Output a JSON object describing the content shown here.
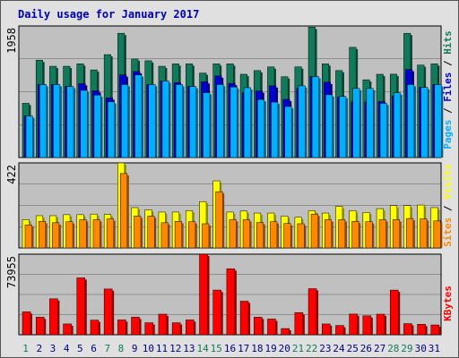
{
  "colors": {
    "background": "#e0e0e0",
    "plot": "#c0c0c0",
    "title": "#0000b0",
    "hits": "#107a5a",
    "files": "#0000d0",
    "pages": "#00b0ff",
    "visits": "#ffff00",
    "sites": "#ff8800",
    "kbytes": "#ff0000",
    "weekend_tick": "#107a5a",
    "tick": "#000080"
  },
  "chart_data": [
    {
      "type": "bar",
      "title": "Daily usage for January 2017",
      "categories": [
        "1",
        "2",
        "3",
        "4",
        "5",
        "6",
        "7",
        "8",
        "9",
        "10",
        "11",
        "12",
        "13",
        "14",
        "15",
        "16",
        "17",
        "18",
        "19",
        "20",
        "21",
        "22",
        "23",
        "24",
        "25",
        "26",
        "27",
        "28",
        "29",
        "30",
        "31"
      ],
      "weekend_days": [
        "1",
        "7",
        "8",
        "14",
        "15",
        "21",
        "22",
        "28",
        "29"
      ],
      "y_label": "1958",
      "ylim": [
        0,
        1958
      ],
      "right_labels": [
        "Pages",
        "Files",
        "Hits"
      ],
      "series": [
        {
          "name": "Hits",
          "values": [
            807,
            1449,
            1358,
            1358,
            1395,
            1304,
            1531,
            1849,
            1467,
            1440,
            1358,
            1394,
            1394,
            1257,
            1394,
            1394,
            1239,
            1294,
            1348,
            1202,
            1349,
            1940,
            1394,
            1294,
            1640,
            1157,
            1239,
            1240,
            1849,
            1376,
            1394
          ]
        },
        {
          "name": "Files",
          "values": [
            617,
            1086,
            1086,
            1057,
            1100,
            995,
            888,
            1230,
            1280,
            1086,
            1140,
            1113,
            1058,
            1126,
            1213,
            1103,
            964,
            991,
            1067,
            865,
            1028,
            1205,
            1120,
            900,
            830,
            830,
            833,
            914,
            1311,
            1043,
            1086
          ]
        },
        {
          "name": "Pages",
          "values": [
            617,
            1086,
            1086,
            1057,
            1000,
            930,
            831,
            1086,
            1230,
            1086,
            1140,
            1086,
            1058,
            966,
            1086,
            1050,
            1040,
            864,
            825,
            759,
            1067,
            1205,
            934,
            910,
            1028,
            1028,
            807,
            963,
            1086,
            1043,
            1086
          ]
        }
      ]
    },
    {
      "type": "bar",
      "categories": [
        "1",
        "2",
        "3",
        "4",
        "5",
        "6",
        "7",
        "8",
        "9",
        "10",
        "11",
        "12",
        "13",
        "14",
        "15",
        "16",
        "17",
        "18",
        "19",
        "20",
        "21",
        "22",
        "23",
        "24",
        "25",
        "26",
        "27",
        "28",
        "29",
        "30",
        "31"
      ],
      "y_label": "422",
      "ylim": [
        0,
        422
      ],
      "right_labels": [
        "Sites",
        "Visits"
      ],
      "series": [
        {
          "name": "Visits",
          "values": [
            141,
            160,
            160,
            165,
            165,
            168,
            167,
            422,
            200,
            189,
            178,
            178,
            185,
            230,
            333,
            178,
            183,
            173,
            173,
            158,
            152,
            185,
            173,
            206,
            185,
            176,
            195,
            210,
            210,
            213,
            200
          ]
        },
        {
          "name": "Sites",
          "values": [
            114,
            132,
            125,
            130,
            140,
            140,
            144,
            369,
            158,
            158,
            125,
            132,
            130,
            120,
            279,
            140,
            140,
            126,
            130,
            121,
            120,
            168,
            140,
            140,
            132,
            130,
            140,
            140,
            146,
            144,
            134
          ]
        }
      ]
    },
    {
      "type": "bar",
      "categories": [
        "1",
        "2",
        "3",
        "4",
        "5",
        "6",
        "7",
        "8",
        "9",
        "10",
        "11",
        "12",
        "13",
        "14",
        "15",
        "16",
        "17",
        "18",
        "19",
        "20",
        "21",
        "22",
        "23",
        "24",
        "25",
        "26",
        "27",
        "28",
        "29",
        "30",
        "31"
      ],
      "y_label": "73955",
      "ylim": [
        0,
        73955
      ],
      "right_labels": [
        "KBytes"
      ],
      "series": [
        {
          "name": "KBytes",
          "values": [
            21000,
            16100,
            33000,
            9900,
            52200,
            13400,
            42000,
            13600,
            16100,
            11000,
            18900,
            11000,
            13600,
            73955,
            41000,
            60500,
            30800,
            16100,
            14400,
            5700,
            20300,
            42300,
            9900,
            8500,
            19000,
            17400,
            18900,
            41000,
            10200,
            9600,
            9000
          ]
        }
      ]
    }
  ]
}
